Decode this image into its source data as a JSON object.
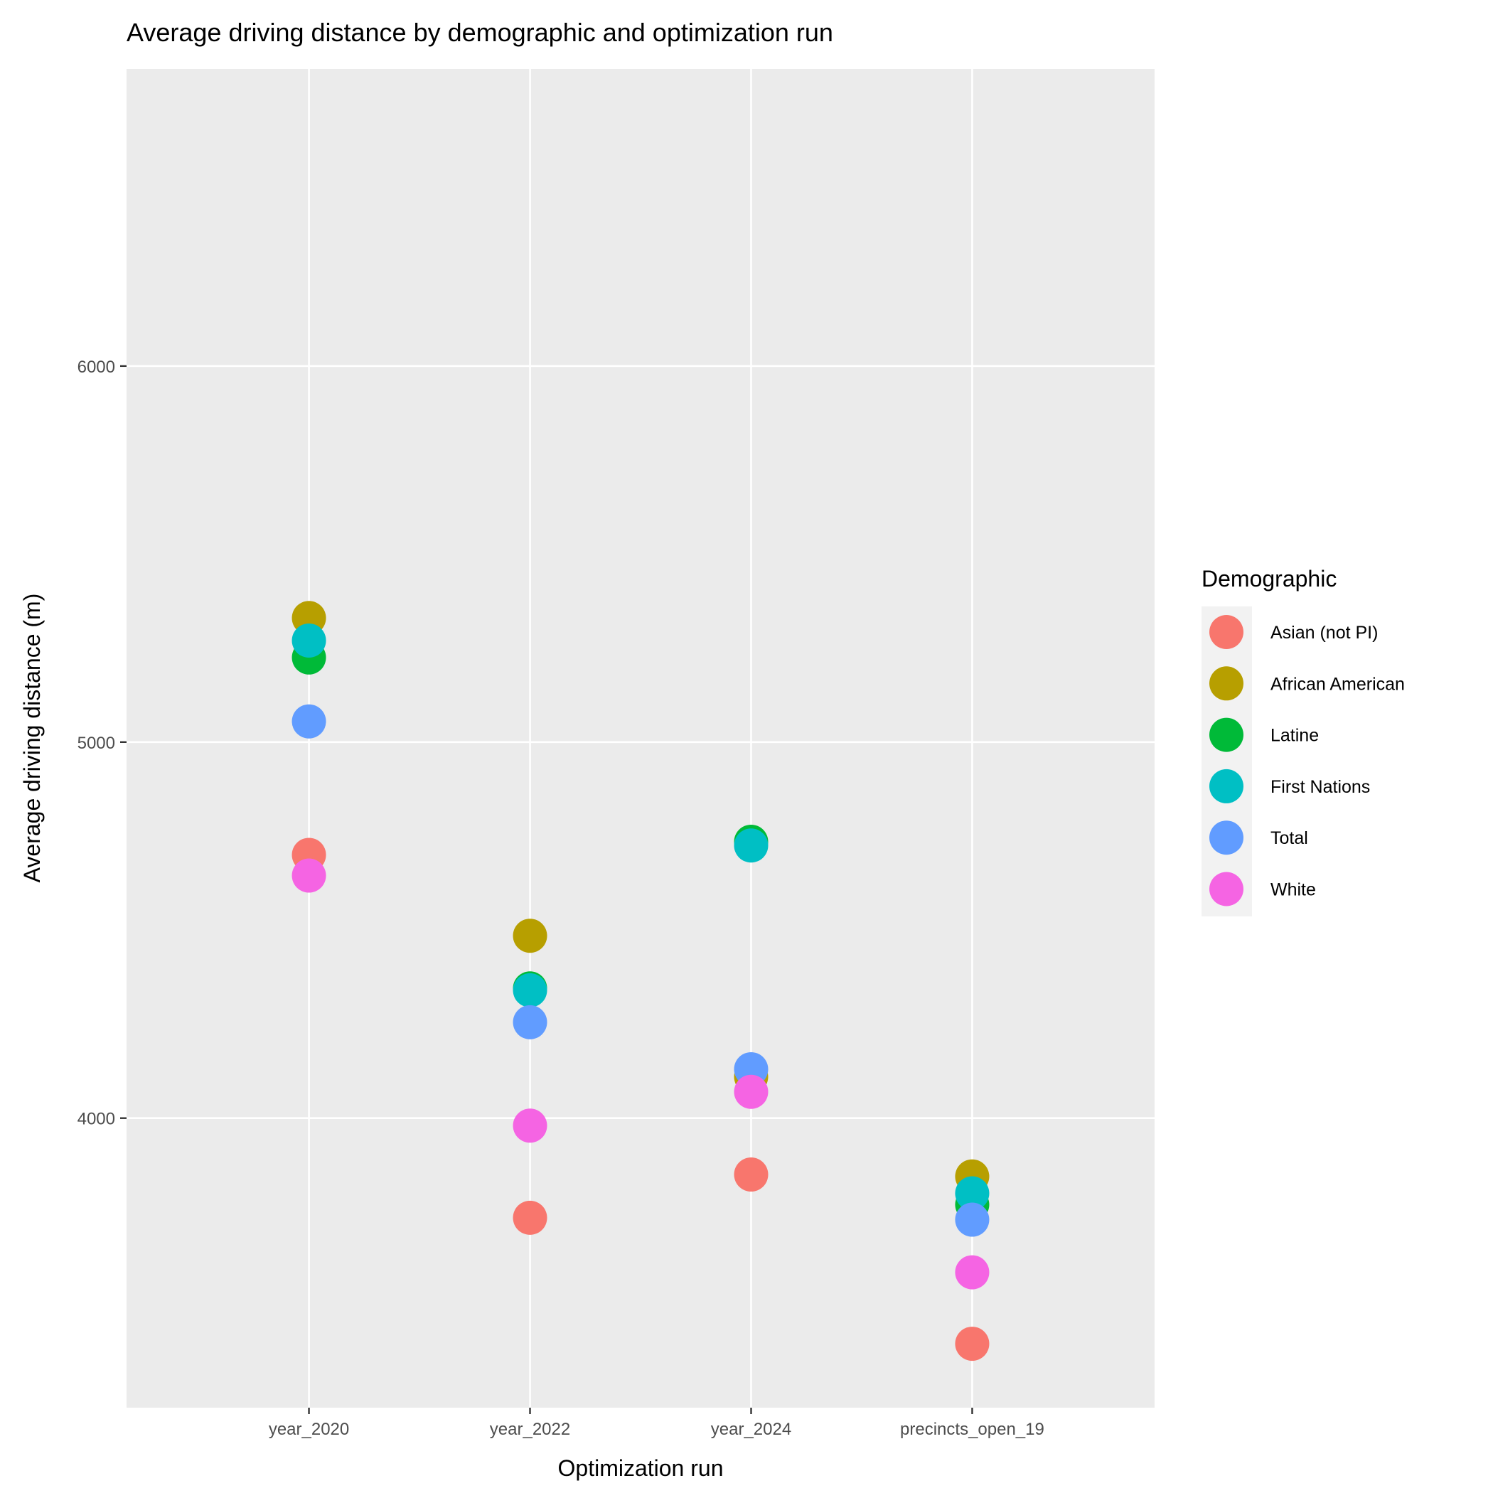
{
  "chart_data": {
    "type": "scatter",
    "title": "Average driving distance by demographic and optimization run",
    "xlabel": "Optimization run",
    "ylabel": "Average driving distance (m)",
    "categories": [
      "year_2020",
      "year_2022",
      "year_2024",
      "precincts_open_19"
    ],
    "ylim": [
      3230,
      6790
    ],
    "yticks": [
      4000,
      5000,
      6000
    ],
    "grid": true,
    "legend": {
      "title": "Demographic",
      "position": "right"
    },
    "series": [
      {
        "name": "Asian (not PI)",
        "color": "#F8766D",
        "values": [
          4700,
          3735,
          3850,
          3400
        ]
      },
      {
        "name": "African American",
        "color": "#B79F00",
        "values": [
          5330,
          4485,
          4110,
          3845
        ]
      },
      {
        "name": "Latine",
        "color": "#00BA38",
        "values": [
          5225,
          4345,
          4735,
          3770
        ]
      },
      {
        "name": "First Nations",
        "color": "#00BFC4",
        "values": [
          5270,
          4340,
          4725,
          3800
        ]
      },
      {
        "name": "Total",
        "color": "#619CFF",
        "values": [
          5055,
          4255,
          4130,
          3730
        ]
      },
      {
        "name": "White",
        "color": "#F564E3",
        "values": [
          4645,
          3980,
          4070,
          3590
        ]
      }
    ]
  }
}
